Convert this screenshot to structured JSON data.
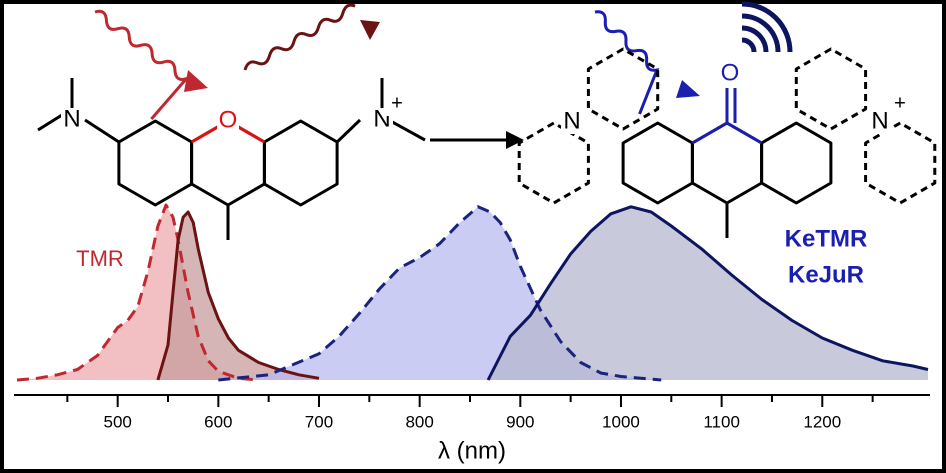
{
  "chart_data": {
    "type": "area",
    "x_label": "λ (nm)",
    "xlim": [
      397,
      1307
    ],
    "xticks": [
      500,
      600,
      700,
      800,
      900,
      1000,
      1100,
      1200
    ],
    "xminorticks": [
      450,
      550,
      650,
      750,
      850,
      950,
      1050,
      1150,
      1250
    ],
    "ylim": [
      0,
      1
    ],
    "annotations": [
      {
        "text": "TMR",
        "color": "#c0282f"
      },
      {
        "text": "KeTMR",
        "color": "#1a1fb0"
      },
      {
        "text": "KeJuR",
        "color": "#1a1fb0"
      }
    ],
    "series": [
      {
        "color": "#c0282f",
        "fill": "#eeaaae",
        "dashed": true,
        "x": [
          400,
          420,
          440,
          460,
          480,
          500,
          510,
          520,
          530,
          540,
          548,
          555,
          560,
          570,
          580,
          590,
          600,
          620,
          640
        ],
        "values": [
          0,
          0.01,
          0.03,
          0.06,
          0.14,
          0.3,
          0.34,
          0.42,
          0.62,
          0.88,
          1.0,
          0.93,
          0.8,
          0.5,
          0.25,
          0.11,
          0.05,
          0.01,
          0
        ]
      },
      {
        "color": "#6b1212",
        "fill": "#c79c9c",
        "dashed": false,
        "x": [
          540,
          550,
          555,
          560,
          565,
          570,
          575,
          580,
          590,
          600,
          610,
          620,
          640,
          660,
          680,
          700
        ],
        "values": [
          0,
          0.2,
          0.5,
          0.8,
          0.93,
          0.96,
          0.9,
          0.75,
          0.5,
          0.35,
          0.24,
          0.17,
          0.1,
          0.06,
          0.03,
          0.01
        ]
      },
      {
        "color": "#1a237e",
        "fill": "#b9bbef",
        "dashed": true,
        "x": [
          600,
          650,
          700,
          720,
          740,
          760,
          780,
          800,
          820,
          840,
          858,
          870,
          880,
          890,
          900,
          920,
          940,
          960,
          980,
          1000,
          1040
        ],
        "values": [
          0,
          0.03,
          0.15,
          0.25,
          0.38,
          0.52,
          0.64,
          0.7,
          0.78,
          0.9,
          0.99,
          0.96,
          0.9,
          0.8,
          0.65,
          0.4,
          0.22,
          0.1,
          0.04,
          0.02,
          0
        ]
      },
      {
        "color": "#0d1560",
        "fill": "#b6b7cf",
        "dashed": false,
        "x": [
          868,
          875,
          890,
          910,
          930,
          950,
          970,
          990,
          1010,
          1030,
          1050,
          1080,
          1110,
          1140,
          1170,
          1200,
          1230,
          1260,
          1290,
          1305
        ],
        "values": [
          0,
          0.08,
          0.25,
          0.37,
          0.55,
          0.72,
          0.85,
          0.95,
          0.99,
          0.96,
          0.88,
          0.75,
          0.6,
          0.46,
          0.34,
          0.24,
          0.17,
          0.11,
          0.08,
          0.06
        ]
      }
    ]
  },
  "structure_labels": [
    "N",
    "O",
    "N",
    "+",
    "N",
    "O",
    "N",
    "+"
  ]
}
